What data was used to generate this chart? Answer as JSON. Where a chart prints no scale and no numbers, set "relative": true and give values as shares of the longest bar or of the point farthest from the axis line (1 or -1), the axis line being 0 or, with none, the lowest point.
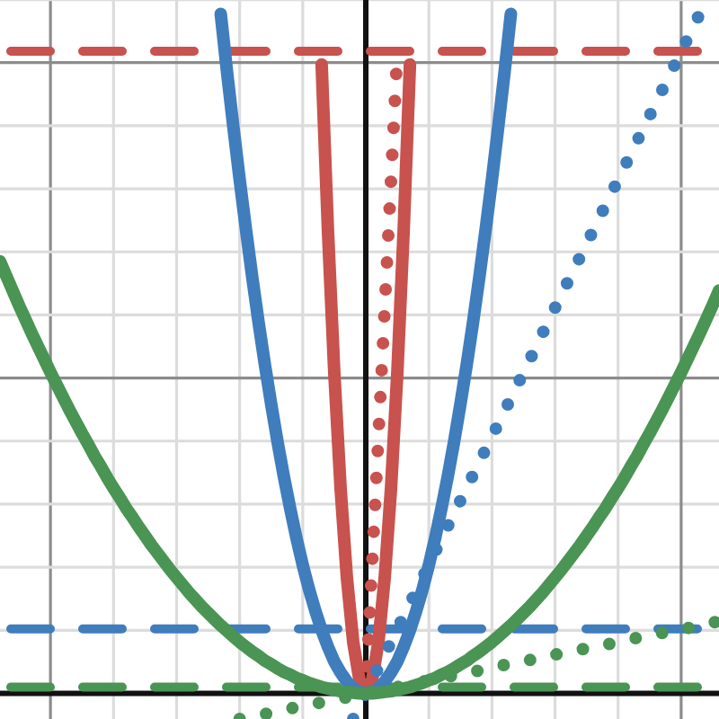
{
  "chart_data": {
    "type": "line",
    "relative": true,
    "grid": true,
    "legend": false,
    "tick_labels": false,
    "categories": [
      null,
      null,
      null,
      null,
      null,
      null,
      null,
      null,
      null,
      null,
      null,
      null,
      null,
      null,
      null,
      null,
      null,
      null,
      null,
      null,
      null,
      null,
      null,
      null,
      null,
      null,
      null,
      null,
      null,
      null,
      null,
      null,
      null,
      null,
      null,
      null,
      null,
      null,
      null,
      null,
      null,
      null,
      null,
      null,
      null,
      null,
      null,
      null,
      null,
      null,
      null,
      null,
      null,
      null,
      null,
      null,
      null,
      null,
      null,
      null,
      null,
      null,
      null,
      null,
      null,
      null,
      null,
      null,
      null,
      null,
      null,
      null,
      null,
      null,
      null,
      null,
      null,
      null,
      null,
      null,
      null,
      null,
      null,
      null,
      null,
      null,
      null,
      null,
      null,
      null,
      null,
      null,
      null,
      null,
      null,
      null,
      null,
      null,
      null,
      null,
      null,
      null,
      null,
      null,
      null,
      null,
      null,
      null,
      null,
      null,
      null,
      null,
      null,
      null,
      null
    ],
    "series": [
      {
        "color": "#4a9454",
        "line_style": "solid",
        "values": [
          0.623,
          0.602,
          0.581,
          0.56,
          0.54,
          0.52,
          0.501,
          0.482,
          0.463,
          0.445,
          0.427,
          0.409,
          0.392,
          0.375,
          0.359,
          0.342,
          0.327,
          0.311,
          0.296,
          0.282,
          0.267,
          0.254,
          0.24,
          0.227,
          0.214,
          0.202,
          0.19,
          0.178,
          0.167,
          0.156,
          0.145,
          0.135,
          0.125,
          0.116,
          0.107,
          0.098,
          0.09,
          0.082,
          0.074,
          0.067,
          0.06,
          0.054,
          0.047,
          0.042,
          0.036,
          0.031,
          0.027,
          0.022,
          0.019,
          0.015,
          0.012,
          0.009,
          0.007,
          0.005,
          0.003,
          0.002,
          0.001,
          0,
          0,
          0,
          0.001,
          0.002,
          0.003,
          0.005,
          0.007,
          0.009,
          0.012,
          0.015,
          0.019,
          0.022,
          0.027,
          0.031,
          0.036,
          0.042,
          0.047,
          0.054,
          0.06,
          0.067,
          0.074,
          0.082,
          0.09,
          0.098,
          0.107,
          0.116,
          0.125,
          0.135,
          0.145,
          0.156,
          0.167,
          0.178,
          0.19,
          0.202,
          0.214,
          0.227,
          0.24,
          0.254,
          0.267,
          0.282,
          0.296,
          0.311,
          0.327,
          0.342,
          0.359,
          0.375,
          0.392,
          0.409,
          0.427,
          0.445,
          0.463,
          0.482,
          0.501,
          0.52,
          0.54,
          0.56,
          0.581
        ]
      },
      {
        "color": "#4a9454",
        "line_style": "dotted",
        "values": [
          null,
          null,
          null,
          null,
          null,
          null,
          null,
          null,
          null,
          null,
          null,
          null,
          null,
          null,
          null,
          null,
          null,
          null,
          null,
          null,
          null,
          null,
          null,
          null,
          null,
          null,
          null,
          null,
          null,
          null,
          null,
          null,
          null,
          null,
          null,
          null,
          null,
          null,
          -0.037,
          -0.035,
          -0.033,
          -0.031,
          -0.03,
          -0.028,
          -0.026,
          -0.024,
          -0.022,
          -0.02,
          -0.019,
          -0.017,
          -0.015,
          -0.013,
          -0.011,
          -0.009,
          -0.007,
          -0.006,
          -0.004,
          -0.002,
          0,
          0.002,
          0.004,
          0.006,
          0.007,
          0.009,
          0.011,
          0.013,
          0.015,
          0.017,
          0.019,
          0.02,
          0.022,
          0.024,
          0.026,
          0.028,
          0.03,
          0.031,
          0.033,
          0.035,
          0.037,
          0.039,
          0.041,
          0.043,
          0.044,
          0.046,
          0.048,
          0.05,
          0.052,
          0.054,
          0.056,
          0.057,
          0.059,
          0.061,
          0.063,
          0.065,
          0.067,
          0.069,
          0.07,
          0.072,
          0.074,
          0.076,
          0.078,
          0.08,
          0.081,
          0.083,
          0.085,
          0.087,
          0.089,
          0.091,
          0.093,
          0.094,
          0.096,
          0.098,
          0.1,
          0.102,
          0.104
        ]
      },
      {
        "color": "#3f7dbd",
        "line_style": "solid",
        "values": [
          null,
          null,
          null,
          null,
          null,
          null,
          null,
          null,
          null,
          null,
          null,
          null,
          null,
          null,
          null,
          null,
          null,
          null,
          null,
          null,
          null,
          null,
          null,
          null,
          null,
          null,
          null,
          null,
          null,
          null,
          null,
          null,
          null,
          null,
          null,
          0.98,
          0.896,
          0.817,
          0.741,
          0.669,
          0.6,
          0.535,
          0.474,
          0.417,
          0.363,
          0.313,
          0.267,
          0.224,
          0.185,
          0.15,
          0.119,
          0.091,
          0.067,
          0.046,
          0.03,
          0.017,
          0.007,
          0.002,
          0,
          0.002,
          0.007,
          0.017,
          0.03,
          0.046,
          0.067,
          0.091,
          0.119,
          0.15,
          0.185,
          0.224,
          0.267,
          0.313,
          0.363,
          0.417,
          0.474,
          0.535,
          0.6,
          0.669,
          0.741,
          0.817,
          0.896,
          0.98,
          null,
          null,
          null,
          null,
          null,
          null,
          null,
          null,
          null,
          null,
          null,
          null,
          null,
          null,
          null,
          null,
          null,
          null,
          null,
          null,
          null,
          null,
          null,
          null,
          null,
          null,
          null,
          null,
          null,
          null,
          null,
          null,
          null
        ]
      },
      {
        "color": "#3f7dbd",
        "line_style": "dotted",
        "values": [
          null,
          null,
          null,
          null,
          null,
          null,
          null,
          null,
          null,
          null,
          null,
          null,
          null,
          null,
          null,
          null,
          null,
          null,
          null,
          null,
          null,
          null,
          null,
          null,
          null,
          null,
          null,
          null,
          null,
          null,
          null,
          null,
          null,
          null,
          null,
          null,
          null,
          null,
          null,
          null,
          null,
          null,
          null,
          null,
          null,
          null,
          null,
          null,
          null,
          null,
          null,
          null,
          null,
          null,
          null,
          null,
          -0.037,
          -0.019,
          0,
          0.019,
          0.037,
          0.056,
          0.074,
          0.093,
          0.111,
          0.13,
          0.148,
          0.167,
          0.185,
          0.204,
          0.222,
          0.241,
          0.259,
          0.278,
          0.296,
          0.315,
          0.333,
          0.352,
          0.37,
          0.389,
          0.407,
          0.426,
          0.444,
          0.463,
          0.481,
          0.5,
          0.519,
          0.537,
          0.556,
          0.574,
          0.593,
          0.611,
          0.63,
          0.648,
          0.667,
          0.685,
          0.704,
          0.722,
          0.741,
          0.759,
          0.778,
          0.796,
          0.815,
          0.833,
          0.852,
          0.87,
          0.889,
          0.907,
          0.926,
          0.944,
          0.963,
          0.981,
          1,
          null,
          null
        ]
      },
      {
        "color": "#c8524e",
        "line_style": "solid",
        "values": [
          null,
          null,
          null,
          null,
          null,
          null,
          null,
          null,
          null,
          null,
          null,
          null,
          null,
          null,
          null,
          null,
          null,
          null,
          null,
          null,
          null,
          null,
          null,
          null,
          null,
          null,
          null,
          null,
          null,
          null,
          null,
          null,
          null,
          null,
          null,
          null,
          null,
          null,
          null,
          null,
          null,
          null,
          null,
          null,
          null,
          null,
          null,
          null,
          null,
          null,
          null,
          0.907,
          0.667,
          0.463,
          0.296,
          0.167,
          0.074,
          0.019,
          0,
          0.019,
          0.074,
          0.167,
          0.296,
          0.463,
          0.667,
          0.907,
          null,
          null,
          null,
          null,
          null,
          null,
          null,
          null,
          null,
          null,
          null,
          null,
          null,
          null,
          null,
          null,
          null,
          null,
          null,
          null,
          null,
          null,
          null,
          null,
          null,
          null,
          null,
          null,
          null,
          null,
          null,
          null,
          null,
          null,
          null,
          null,
          null,
          null,
          null,
          null,
          null,
          null,
          null,
          null,
          null,
          null,
          null,
          null,
          null
        ]
      },
      {
        "color": "#c8524e",
        "line_style": "dotted",
        "values": [
          null,
          null,
          null,
          null,
          null,
          null,
          null,
          null,
          null,
          null,
          null,
          null,
          null,
          null,
          null,
          null,
          null,
          null,
          null,
          null,
          null,
          null,
          null,
          null,
          null,
          null,
          null,
          null,
          null,
          null,
          null,
          null,
          null,
          null,
          null,
          null,
          null,
          null,
          null,
          null,
          null,
          null,
          null,
          null,
          null,
          null,
          null,
          null,
          null,
          null,
          null,
          null,
          null,
          null,
          null,
          null,
          null,
          null,
          0,
          0.185,
          0.37,
          0.556,
          0.741,
          0.926,
          null,
          null,
          null,
          null,
          null,
          null,
          null,
          null,
          null,
          null,
          null,
          null,
          null,
          null,
          null,
          null,
          null,
          null,
          null,
          null,
          null,
          null,
          null,
          null,
          null,
          null,
          null,
          null,
          null,
          null,
          null,
          null,
          null,
          null,
          null,
          null,
          null,
          null,
          null,
          null,
          null,
          null,
          null,
          null,
          null,
          null,
          null,
          null,
          null,
          null,
          null
        ]
      }
    ],
    "ref_lines": [
      {
        "axis": "y",
        "value": 0.926,
        "color": "#c8524e",
        "line_style": "dashed"
      },
      {
        "axis": "y",
        "value": 0.093,
        "color": "#3f7dbd",
        "line_style": "dashed"
      },
      {
        "axis": "y",
        "value": 0.009,
        "color": "#4a9454",
        "line_style": "dashed"
      }
    ]
  }
}
